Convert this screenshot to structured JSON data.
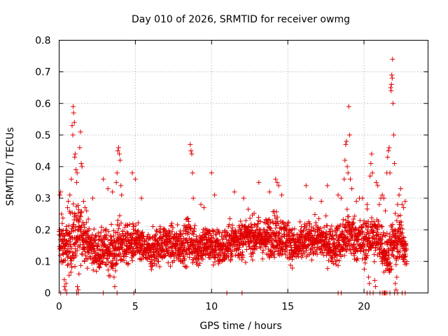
{
  "chart_data": {
    "type": "scatter",
    "title": "Day 010 of 2026, SRMTID for receiver owmg",
    "xlabel": "GPS time / hours",
    "ylabel": "SRMTID / TECUs",
    "xlim": [
      0,
      24.2
    ],
    "ylim": [
      0,
      0.8
    ],
    "x_ticks": [
      0,
      5,
      10,
      15,
      20
    ],
    "x_tick_labels": [
      "0",
      "5",
      "10",
      "15",
      "20"
    ],
    "y_ticks": [
      0,
      0.1,
      0.2,
      0.3,
      0.4,
      0.5,
      0.6,
      0.7,
      0.8
    ],
    "y_tick_labels": [
      "0",
      "0.1",
      "0.2",
      "0.3",
      "0.4",
      "0.5",
      "0.6",
      "0.7",
      "0.8"
    ],
    "grid": true,
    "marker": "plus",
    "color": "#e00000",
    "envelope": {
      "x": [
        0.0,
        0.5,
        1.0,
        1.5,
        2.0,
        2.5,
        3.0,
        3.5,
        4.0,
        4.5,
        5.0,
        5.5,
        6.0,
        6.5,
        7.0,
        7.5,
        8.0,
        8.5,
        9.0,
        9.5,
        10.0,
        10.5,
        11.0,
        11.5,
        12.0,
        12.5,
        13.0,
        13.5,
        14.0,
        14.5,
        15.0,
        15.5,
        16.0,
        16.5,
        17.0,
        17.5,
        18.0,
        18.5,
        19.0,
        19.5,
        20.0,
        20.5,
        21.0,
        21.5,
        22.0,
        22.5,
        22.8
      ],
      "center": [
        0.16,
        0.14,
        0.18,
        0.19,
        0.15,
        0.13,
        0.14,
        0.13,
        0.16,
        0.15,
        0.16,
        0.14,
        0.13,
        0.15,
        0.16,
        0.15,
        0.15,
        0.17,
        0.14,
        0.16,
        0.15,
        0.14,
        0.15,
        0.17,
        0.17,
        0.18,
        0.18,
        0.17,
        0.19,
        0.18,
        0.17,
        0.14,
        0.16,
        0.17,
        0.17,
        0.16,
        0.15,
        0.16,
        0.19,
        0.17,
        0.16,
        0.18,
        0.17,
        0.12,
        0.16,
        0.17,
        0.12
      ],
      "spread": [
        0.08,
        0.1,
        0.12,
        0.09,
        0.07,
        0.07,
        0.07,
        0.08,
        0.09,
        0.07,
        0.07,
        0.06,
        0.07,
        0.07,
        0.07,
        0.07,
        0.07,
        0.08,
        0.07,
        0.07,
        0.07,
        0.07,
        0.07,
        0.07,
        0.07,
        0.07,
        0.07,
        0.07,
        0.08,
        0.08,
        0.07,
        0.07,
        0.07,
        0.06,
        0.07,
        0.07,
        0.07,
        0.08,
        0.09,
        0.08,
        0.08,
        0.09,
        0.08,
        0.08,
        0.1,
        0.08,
        0.05
      ]
    },
    "points": [
      [
        0.05,
        0.31
      ],
      [
        0.1,
        0.32
      ],
      [
        0.15,
        0.25
      ],
      [
        0.2,
        0.22
      ],
      [
        0.3,
        0.18
      ],
      [
        0.35,
        0.02
      ],
      [
        0.4,
        0.01
      ],
      [
        0.45,
        0.03
      ],
      [
        0.55,
        0.27
      ],
      [
        0.6,
        0.29
      ],
      [
        0.7,
        0.31
      ],
      [
        0.8,
        0.36
      ],
      [
        0.85,
        0.53
      ],
      [
        0.9,
        0.5
      ],
      [
        0.92,
        0.59
      ],
      [
        0.95,
        0.57
      ],
      [
        1.0,
        0.54
      ],
      [
        1.02,
        0.43
      ],
      [
        1.05,
        0.44
      ],
      [
        1.1,
        0.39
      ],
      [
        1.15,
        0.35
      ],
      [
        1.18,
        0.38
      ],
      [
        1.2,
        0.02
      ],
      [
        1.25,
        0.01
      ],
      [
        1.3,
        0.06
      ],
      [
        1.35,
        0.46
      ],
      [
        1.4,
        0.51
      ],
      [
        1.45,
        0.41
      ],
      [
        1.5,
        0.4
      ],
      [
        1.6,
        0.29
      ],
      [
        1.7,
        0.27
      ],
      [
        1.8,
        0.26
      ],
      [
        2.2,
        0.3
      ],
      [
        2.9,
        0.36
      ],
      [
        3.2,
        0.33
      ],
      [
        3.5,
        0.32
      ],
      [
        3.6,
        0.05
      ],
      [
        3.65,
        0.02
      ],
      [
        3.7,
        0.07
      ],
      [
        3.75,
        0.35
      ],
      [
        3.8,
        0.38
      ],
      [
        3.85,
        0.45
      ],
      [
        3.9,
        0.46
      ],
      [
        3.95,
        0.44
      ],
      [
        4.0,
        0.42
      ],
      [
        4.05,
        0.34
      ],
      [
        4.1,
        0.31
      ],
      [
        4.8,
        0.38
      ],
      [
        5.0,
        0.36
      ],
      [
        5.4,
        0.3
      ],
      [
        8.6,
        0.47
      ],
      [
        8.65,
        0.45
      ],
      [
        8.7,
        0.44
      ],
      [
        8.75,
        0.38
      ],
      [
        8.8,
        0.3
      ],
      [
        9.3,
        0.28
      ],
      [
        9.5,
        0.27
      ],
      [
        10.0,
        0.38
      ],
      [
        10.2,
        0.31
      ],
      [
        11.5,
        0.32
      ],
      [
        12.1,
        0.3
      ],
      [
        13.1,
        0.35
      ],
      [
        13.8,
        0.32
      ],
      [
        14.2,
        0.36
      ],
      [
        14.3,
        0.35
      ],
      [
        14.4,
        0.34
      ],
      [
        14.6,
        0.31
      ],
      [
        16.2,
        0.34
      ],
      [
        16.5,
        0.3
      ],
      [
        17.2,
        0.29
      ],
      [
        17.6,
        0.34
      ],
      [
        18.3,
        0.31
      ],
      [
        18.5,
        0.3
      ],
      [
        18.7,
        0.36
      ],
      [
        18.75,
        0.42
      ],
      [
        18.8,
        0.47
      ],
      [
        18.85,
        0.48
      ],
      [
        18.9,
        0.4
      ],
      [
        18.95,
        0.38
      ],
      [
        19.0,
        0.59
      ],
      [
        19.05,
        0.5
      ],
      [
        19.1,
        0.36
      ],
      [
        19.2,
        0.33
      ],
      [
        19.5,
        0.29
      ],
      [
        19.7,
        0.3
      ],
      [
        19.9,
        0.3
      ],
      [
        20.2,
        0.28
      ],
      [
        20.3,
        0.05
      ],
      [
        20.35,
        0.03
      ],
      [
        20.4,
        0.37
      ],
      [
        20.45,
        0.41
      ],
      [
        20.5,
        0.44
      ],
      [
        20.55,
        0.38
      ],
      [
        20.7,
        0.04
      ],
      [
        20.75,
        0.02
      ],
      [
        20.8,
        0.35
      ],
      [
        20.9,
        0.34
      ],
      [
        21.0,
        0.28
      ],
      [
        21.1,
        0.3
      ],
      [
        21.2,
        0.31
      ],
      [
        21.3,
        0.3
      ],
      [
        21.4,
        0.26
      ],
      [
        21.5,
        0.38
      ],
      [
        21.55,
        0.43
      ],
      [
        21.6,
        0.45
      ],
      [
        21.65,
        0.46
      ],
      [
        21.7,
        0.38
      ],
      [
        21.75,
        0.65
      ],
      [
        21.78,
        0.64
      ],
      [
        21.8,
        0.66
      ],
      [
        21.82,
        0.69
      ],
      [
        21.85,
        0.68
      ],
      [
        21.87,
        0.74
      ],
      [
        21.9,
        0.6
      ],
      [
        21.95,
        0.5
      ],
      [
        22.0,
        0.41
      ],
      [
        22.05,
        0.03
      ],
      [
        22.1,
        0.01
      ],
      [
        22.15,
        0.05
      ],
      [
        22.2,
        0.28
      ],
      [
        22.3,
        0.31
      ],
      [
        22.4,
        0.33
      ],
      [
        22.5,
        0.28
      ],
      [
        22.6,
        0.27
      ],
      [
        22.7,
        0.29
      ],
      [
        22.8,
        0.1
      ],
      [
        0.1,
        0.0
      ],
      [
        0.5,
        0.0
      ],
      [
        1.15,
        0.0
      ],
      [
        1.25,
        0.0
      ],
      [
        2.9,
        0.0
      ],
      [
        3.8,
        0.0
      ],
      [
        4.9,
        0.0
      ],
      [
        11.0,
        0.0
      ],
      [
        12.0,
        0.0
      ],
      [
        18.3,
        0.0
      ],
      [
        18.5,
        0.0
      ],
      [
        20.2,
        0.0
      ],
      [
        20.4,
        0.0
      ],
      [
        20.6,
        0.0
      ],
      [
        21.05,
        0.0
      ],
      [
        21.2,
        0.0
      ],
      [
        21.3,
        0.0
      ],
      [
        21.35,
        0.0
      ],
      [
        21.4,
        0.0
      ],
      [
        21.5,
        0.0
      ],
      [
        21.7,
        0.0
      ],
      [
        22.0,
        0.0
      ],
      [
        22.2,
        0.0
      ],
      [
        22.5,
        0.0
      ],
      [
        22.7,
        0.0
      ]
    ]
  }
}
